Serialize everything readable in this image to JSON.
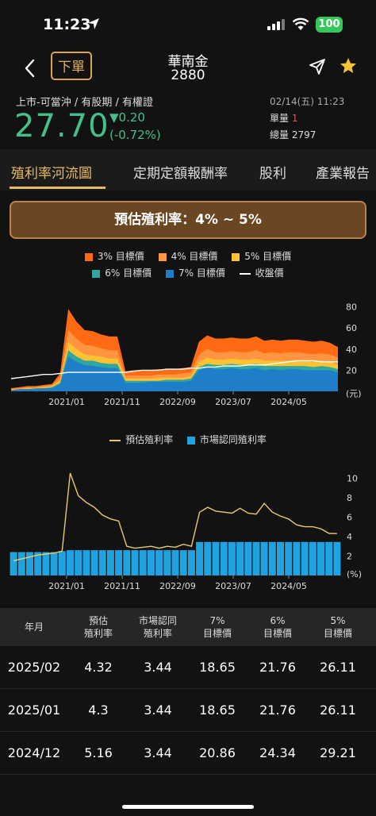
{
  "status": {
    "time": "11:23",
    "battery": "100"
  },
  "nav": {
    "order_label": "下單",
    "stock_name": "華南金",
    "stock_code": "2880"
  },
  "quote": {
    "market_tags": "上市-可當沖 / 有股期 / 有權證",
    "price": "27.70",
    "change": "▼0.20",
    "change_pct": "(-0.72%)",
    "datetime": "02/14(五) 11:23",
    "lot_label": "單量",
    "lot_value": "1",
    "volume_label": "總量",
    "volume_value": "2797",
    "price_color": "#45c08a"
  },
  "tabs": [
    "殖利率河流圖",
    "定期定額報酬率",
    "股利",
    "產業報告"
  ],
  "banner": "預估殖利率：4% ~ 5%",
  "chart_data": [
    {
      "type": "area",
      "series": [
        {
          "name": "3% 目標價",
          "color": "#ff6a13",
          "values": [
            3,
            4,
            5,
            5,
            6,
            7,
            17,
            78,
            66,
            58,
            57,
            54,
            52,
            52,
            19,
            20,
            20,
            20,
            21,
            21,
            21,
            22,
            23,
            47,
            53,
            50,
            50,
            51,
            50,
            50,
            52,
            48,
            49,
            48,
            49,
            49,
            48,
            47,
            48,
            46,
            42
          ]
        },
        {
          "name": "4% 目標價",
          "color": "#ff9540",
          "values": [
            2,
            3,
            4,
            4,
            5,
            6,
            13,
            58,
            50,
            44,
            43,
            41,
            39,
            39,
            15,
            15,
            15,
            15,
            16,
            16,
            16,
            17,
            18,
            35,
            40,
            37,
            37,
            38,
            37,
            37,
            39,
            36,
            37,
            36,
            37,
            37,
            36,
            35,
            36,
            35,
            32
          ]
        },
        {
          "name": "5% 目標價",
          "color": "#ffc233",
          "values": [
            2,
            2,
            3,
            3,
            4,
            5,
            10,
            47,
            40,
            35,
            34,
            33,
            31,
            31,
            12,
            12,
            12,
            12,
            13,
            13,
            13,
            13,
            14,
            28,
            32,
            30,
            30,
            31,
            30,
            30,
            31,
            29,
            29,
            29,
            29,
            29,
            29,
            28,
            29,
            28,
            25
          ]
        },
        {
          "name": "6% 目標價",
          "color": "#2ea89e",
          "values": [
            1,
            2,
            2,
            3,
            3,
            4,
            8,
            39,
            33,
            29,
            29,
            27,
            26,
            26,
            10,
            10,
            10,
            10,
            10,
            11,
            11,
            11,
            12,
            23,
            26,
            25,
            25,
            26,
            25,
            25,
            26,
            24,
            24,
            24,
            24,
            24,
            24,
            23,
            24,
            23,
            21
          ]
        },
        {
          "name": "7% 目標價",
          "color": "#1e7ec8",
          "values": [
            1,
            2,
            2,
            2,
            3,
            3,
            7,
            33,
            28,
            25,
            24,
            23,
            22,
            22,
            8,
            8,
            8,
            9,
            9,
            9,
            9,
            9,
            10,
            20,
            23,
            21,
            21,
            22,
            21,
            21,
            22,
            20,
            21,
            20,
            21,
            21,
            20,
            20,
            20,
            20,
            18
          ]
        }
      ],
      "line": {
        "name": "收盤價",
        "color": "#ffffff",
        "values": [
          12,
          13,
          14,
          15,
          16,
          16,
          17,
          18,
          18,
          18,
          18,
          18,
          18,
          18,
          18,
          19,
          20,
          20,
          20,
          21,
          21,
          21,
          22,
          22,
          23,
          23,
          24,
          24,
          24,
          25,
          25,
          25,
          26,
          27,
          28,
          29,
          29,
          29,
          28,
          28,
          28
        ]
      },
      "x_ticks": [
        "2021/01",
        "2021/11",
        "2022/09",
        "2023/07",
        "2024/05"
      ],
      "y_ticks": [
        "80",
        "60",
        "40",
        "20",
        "(元)"
      ],
      "ylim": [
        0,
        85
      ]
    },
    {
      "type": "bar",
      "series": [
        {
          "name": "預估殖利率",
          "type": "line",
          "color": "#e8c96a",
          "values": [
            1.5,
            1.7,
            1.9,
            2.1,
            2.2,
            2.3,
            2.5,
            10.5,
            8.2,
            7.5,
            7.0,
            6.2,
            5.8,
            5.6,
            3.0,
            2.8,
            2.9,
            3.0,
            2.8,
            3.0,
            2.9,
            3.2,
            3.0,
            6.5,
            7.0,
            6.6,
            6.5,
            6.4,
            6.9,
            6.4,
            6.3,
            7.4,
            6.5,
            6.1,
            5.8,
            5.2,
            5.0,
            5.0,
            4.8,
            4.32,
            4.3
          ]
        },
        {
          "name": "市場認同殖利率",
          "type": "bar",
          "color": "#1fa2e0",
          "values": [
            2.4,
            2.4,
            2.4,
            2.4,
            2.4,
            2.4,
            2.5,
            2.6,
            2.6,
            2.6,
            2.6,
            2.6,
            2.6,
            2.6,
            2.6,
            2.6,
            2.6,
            2.6,
            2.6,
            2.6,
            2.6,
            2.6,
            2.6,
            3.44,
            3.44,
            3.44,
            3.44,
            3.44,
            3.44,
            3.44,
            3.44,
            3.44,
            3.44,
            3.44,
            3.44,
            3.44,
            3.44,
            3.44,
            3.44,
            3.44,
            3.44
          ]
        }
      ],
      "x_ticks": [
        "2021/01",
        "2021/11",
        "2022/09",
        "2023/07",
        "2024/05"
      ],
      "y_ticks": [
        "10",
        "8",
        "6",
        "4",
        "2",
        "(%)"
      ],
      "ylim": [
        0,
        11
      ]
    },
    {
      "type": "table",
      "headers": [
        [
          "年月"
        ],
        [
          "預估",
          "殖利率"
        ],
        [
          "市場認同",
          "殖利率"
        ],
        [
          "7%",
          "目標價"
        ],
        [
          "6%",
          "目標價"
        ],
        [
          "5%",
          "目標價"
        ]
      ],
      "rows": [
        [
          "2025/02",
          "4.32",
          "3.44",
          "18.65",
          "21.76",
          "26.11"
        ],
        [
          "2025/01",
          "4.3",
          "3.44",
          "18.65",
          "21.76",
          "26.11"
        ],
        [
          "2024/12",
          "5.16",
          "3.44",
          "20.86",
          "24.34",
          "29.21"
        ]
      ]
    }
  ]
}
